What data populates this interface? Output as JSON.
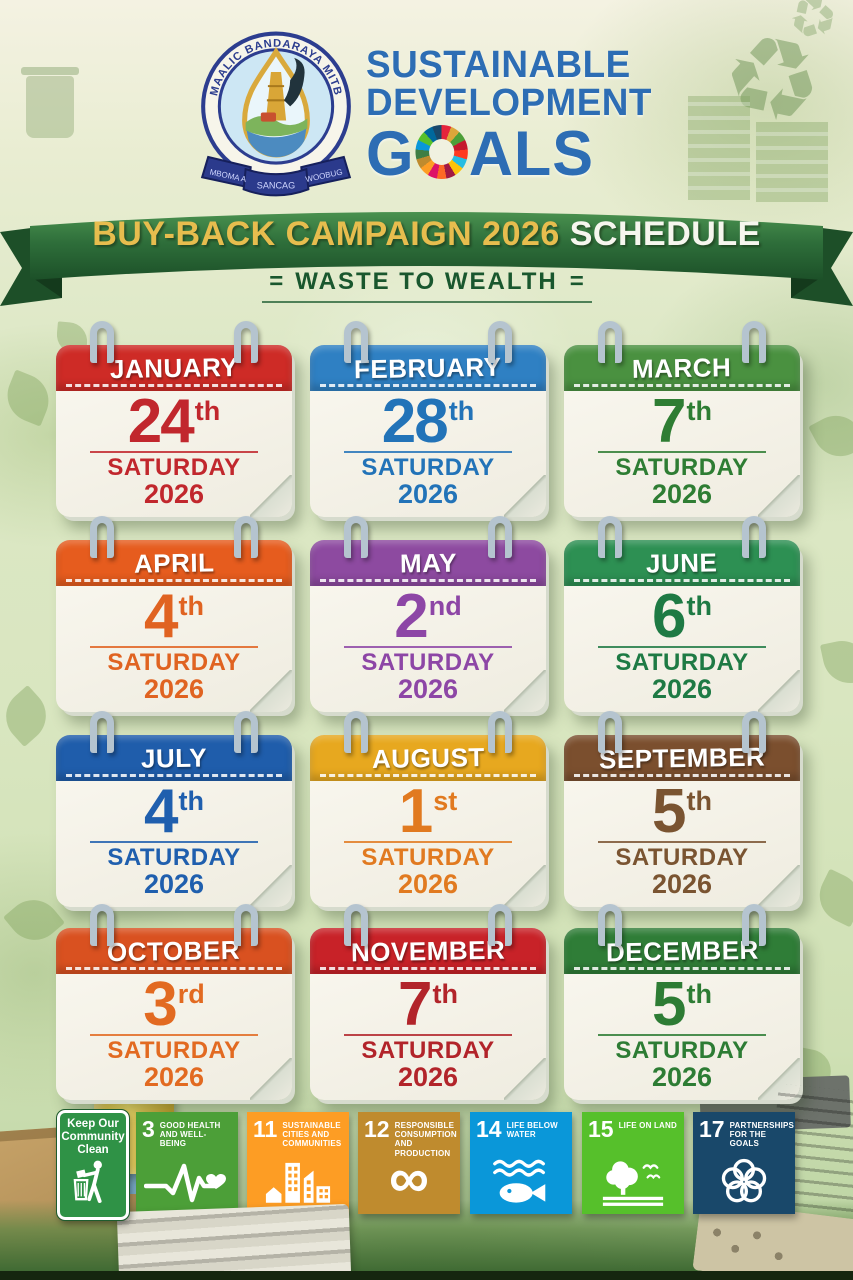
{
  "header": {
    "crest": {
      "arc_text": "MAALIC BANDARAYA MITB",
      "ribbon_left": "MBOMA A",
      "ribbon_center": "SANCAG",
      "ribbon_right": "WOOBUG"
    },
    "title_line1": "SUSTAINABLE",
    "title_line2": "DEVELOPMENT",
    "goals_g": "G",
    "goals_rest": "ALS",
    "title_color": "#2d6db4",
    "wheel_colors": [
      "#E5243B",
      "#DDA63A",
      "#4C9F38",
      "#C5192D",
      "#FF3A21",
      "#26BDE2",
      "#FCC30B",
      "#A21942",
      "#FD6925",
      "#DD1367",
      "#FD9D24",
      "#BF8B2E",
      "#3F7E44",
      "#0A97D9",
      "#56C02B",
      "#00689D",
      "#19486A"
    ]
  },
  "banner": {
    "title_highlight": "BUY-BACK CAMPAIGN 2026",
    "title_rest": " SCHEDULE",
    "subtitle": "WASTE TO WEALTH",
    "flank": "=",
    "ribbon_green": "#2e6e3a",
    "gold": "#e7bd4e"
  },
  "calendar": {
    "day_label": "SATURDAY",
    "year": "2026",
    "months": [
      {
        "month": "JANUARY",
        "day": "24",
        "ordinal": "th",
        "header_color": "#ce2b26",
        "text_color": "#c1272d"
      },
      {
        "month": "FEBRUARY",
        "day": "28",
        "ordinal": "th",
        "header_color": "#2f80c3",
        "text_color": "#2273b8"
      },
      {
        "month": "MARCH",
        "day": "7",
        "ordinal": "th",
        "header_color": "#4a9140",
        "text_color": "#2e7d33"
      },
      {
        "month": "APRIL",
        "day": "4",
        "ordinal": "th",
        "header_color": "#e65c1e",
        "text_color": "#e06321"
      },
      {
        "month": "MAY",
        "day": "2",
        "ordinal": "nd",
        "header_color": "#8d4aa0",
        "text_color": "#8d46a6"
      },
      {
        "month": "JUNE",
        "day": "6",
        "ordinal": "th",
        "header_color": "#2d9053",
        "text_color": "#1e7a44"
      },
      {
        "month": "JULY",
        "day": "4",
        "ordinal": "th",
        "header_color": "#1f5dab",
        "text_color": "#1f5fae"
      },
      {
        "month": "AUGUST",
        "day": "1",
        "ordinal": "st",
        "header_color": "#e7a81f",
        "text_color": "#e17a20"
      },
      {
        "month": "SEPTEMBER",
        "day": "5",
        "ordinal": "th",
        "header_color": "#7b4f2e",
        "text_color": "#7a5431"
      },
      {
        "month": "OCTOBER",
        "day": "3",
        "ordinal": "rd",
        "header_color": "#d95120",
        "text_color": "#e26a21"
      },
      {
        "month": "NOVEMBER",
        "day": "7",
        "ordinal": "th",
        "header_color": "#c82228",
        "text_color": "#b2242a"
      },
      {
        "month": "DECEMBER",
        "day": "5",
        "ordinal": "th",
        "header_color": "#2f7d37",
        "text_color": "#2d7c34"
      }
    ]
  },
  "footer": {
    "sign": {
      "line1": "Keep Our",
      "line2": "Community",
      "line3": "Clean",
      "color": "#2f9246"
    },
    "sdg_tiles": [
      {
        "number": "3",
        "label": "Good Health and Well-Being",
        "color": "#4C9F38",
        "icon": "heartbeat-icon"
      },
      {
        "number": "11",
        "label": "Sustainable Cities and Communities",
        "color": "#FD9D24",
        "icon": "city-icon"
      },
      {
        "number": "12",
        "label": "Responsible Consumption and Production",
        "color": "#BF8B2E",
        "icon": "infinity-icon"
      },
      {
        "number": "14",
        "label": "Life Below Water",
        "color": "#0A97D9",
        "icon": "fish-icon"
      },
      {
        "number": "15",
        "label": "Life on Land",
        "color": "#56C02B",
        "icon": "tree-icon"
      },
      {
        "number": "17",
        "label": "Partnerships for the Goals",
        "color": "#19486A",
        "icon": "wheel-icon"
      }
    ]
  }
}
